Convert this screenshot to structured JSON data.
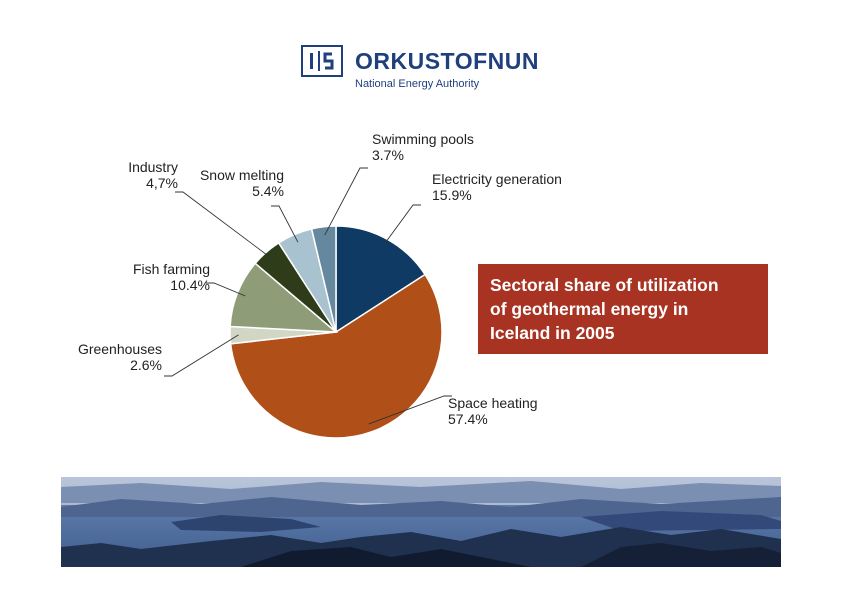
{
  "logo": {
    "mark": "OS",
    "name": "ORKUSTOFNUN",
    "subtitle": "National Energy Authority"
  },
  "title_lines": [
    "Sectoral share of utilization",
    "of geothermal energy in",
    "Iceland in 2005"
  ],
  "colors": {
    "title_bg": "#a93322",
    "logo_blue": "#1f3f7d"
  },
  "chart_data": {
    "type": "pie",
    "start_angle_deg": 0,
    "direction": "clockwise",
    "slices": [
      {
        "label": "Electricity generation",
        "value": 15.9,
        "value_label": "15.9%",
        "color": "#0f3a64"
      },
      {
        "label": "Space heating",
        "value": 57.4,
        "value_label": "57.4%",
        "color": "#b04f18"
      },
      {
        "label": "Greenhouses",
        "value": 2.6,
        "value_label": "2.6%",
        "color": "#d2d6c4"
      },
      {
        "label": "Fish farming",
        "value": 10.4,
        "value_label": "10.4%",
        "color": "#8e9c77"
      },
      {
        "label": "Industry",
        "value": 4.7,
        "value_label": "4,7%",
        "color": "#2e3c19"
      },
      {
        "label": "Snow melting",
        "value": 5.4,
        "value_label": "5.4%",
        "color": "#a9c2d0"
      },
      {
        "label": "Swimming pools",
        "value": 3.7,
        "value_label": "3.7%",
        "color": "#65889e"
      }
    ]
  }
}
